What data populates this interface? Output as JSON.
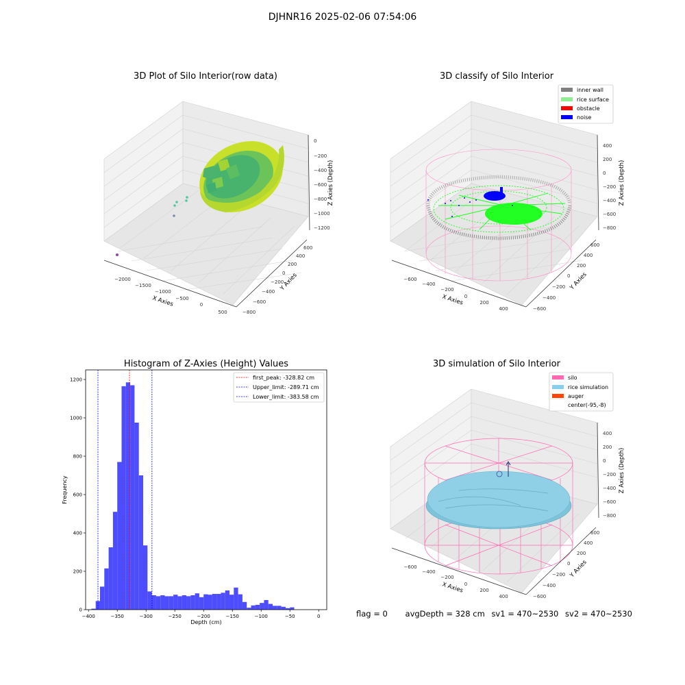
{
  "figure": {
    "title": "DJHNR16 2025-02-06 07:54:06"
  },
  "chart_data": [
    {
      "type": "scatter3d",
      "title": "3D Plot of Silo Interior(row data)",
      "xlabel": "X Axies",
      "ylabel": "Y Axies",
      "zlabel": "Z Axies (Depth)",
      "x_ticks": [
        "−2000",
        "−1500",
        "−1000",
        "−500",
        "0",
        "500"
      ],
      "y_ticks": [
        "−800",
        "−600",
        "−400",
        "−200",
        "0",
        "200",
        "400",
        "600"
      ],
      "z_ticks": [
        "0",
        "−200",
        "−400",
        "−600",
        "−800",
        "−1000",
        "−1200"
      ],
      "grid": true
    },
    {
      "type": "scatter3d",
      "title": "3D classify of Silo Interior",
      "xlabel": "X Axies",
      "ylabel": "Y Axies",
      "zlabel": "Z Axies (Depth)",
      "x_ticks": [
        "−600",
        "−400",
        "−200",
        "0",
        "200",
        "400"
      ],
      "y_ticks": [
        "−600",
        "−400",
        "−200",
        "0",
        "200",
        "400",
        "600"
      ],
      "z_ticks": [
        "400",
        "200",
        "0",
        "−200",
        "−400",
        "−600",
        "−800"
      ],
      "legend": [
        {
          "label": "inner wall",
          "color": "#808080"
        },
        {
          "label": "rice surface",
          "color": "#90ee90"
        },
        {
          "label": "obstacle",
          "color": "#ff0000"
        },
        {
          "label": "noise",
          "color": "#0000ff"
        }
      ],
      "legend_position": "top-right",
      "grid": true
    },
    {
      "type": "bar",
      "title": "Histogram of Z-Axies (Height) Values",
      "xlabel": "Depth (cm)",
      "ylabel": "Frequency",
      "bin_edges_start": -395,
      "bin_width": 7.5,
      "values": [
        5,
        45,
        120,
        215,
        325,
        510,
        770,
        1165,
        1185,
        1170,
        975,
        700,
        335,
        95,
        75,
        70,
        75,
        70,
        70,
        78,
        70,
        75,
        70,
        75,
        85,
        65,
        80,
        78,
        82,
        82,
        88,
        100,
        78,
        115,
        80,
        40,
        10,
        22,
        25,
        35,
        50,
        30,
        20,
        20,
        15,
        8,
        12
      ],
      "xlim": [
        -405,
        14
      ],
      "ylim": [
        0,
        1250
      ],
      "x_ticks": [
        -400,
        -350,
        -300,
        -250,
        -200,
        -150,
        -100,
        -50,
        0
      ],
      "y_ticks": [
        0,
        200,
        400,
        600,
        800,
        1000,
        1200
      ],
      "bar_color": "#4d4dff",
      "reference_lines": [
        {
          "label": "first_peak: -328.82 cm",
          "x": -328.82,
          "color": "#ff0000"
        },
        {
          "label": "Upper_limit: -289.71 cm",
          "x": -289.71,
          "color": "#0000ff"
        },
        {
          "label": "Lower_limit: -383.58 cm",
          "x": -383.58,
          "color": "#0000ff"
        }
      ],
      "legend_position": "top-right"
    },
    {
      "type": "surface3d",
      "title": "3D simulation of Silo Interior",
      "xlabel": "X Axies",
      "ylabel": "Y Axies",
      "zlabel": "Z Axies (Depth)",
      "x_ticks": [
        "−600",
        "−400",
        "−200",
        "0",
        "200",
        "400"
      ],
      "y_ticks": [
        "−600",
        "−400",
        "−200",
        "0",
        "200",
        "400",
        "600"
      ],
      "z_ticks": [
        "400",
        "200",
        "0",
        "−200",
        "−400",
        "−600",
        "−800"
      ],
      "legend": [
        {
          "label": "silo",
          "color": "#ff69b4"
        },
        {
          "label": "rice simulation",
          "color": "#87ceeb"
        },
        {
          "label": "auger",
          "color": "#ff4500"
        },
        {
          "label": "center(-95,-8)",
          "color": "none"
        }
      ],
      "legend_position": "top-right",
      "grid": true
    }
  ],
  "footer": {
    "flag": "flag = 0",
    "avg_depth": "avgDepth = 328 cm",
    "sv1": "sv1 = 470~2530",
    "sv2": "sv2 = 470~2530"
  }
}
